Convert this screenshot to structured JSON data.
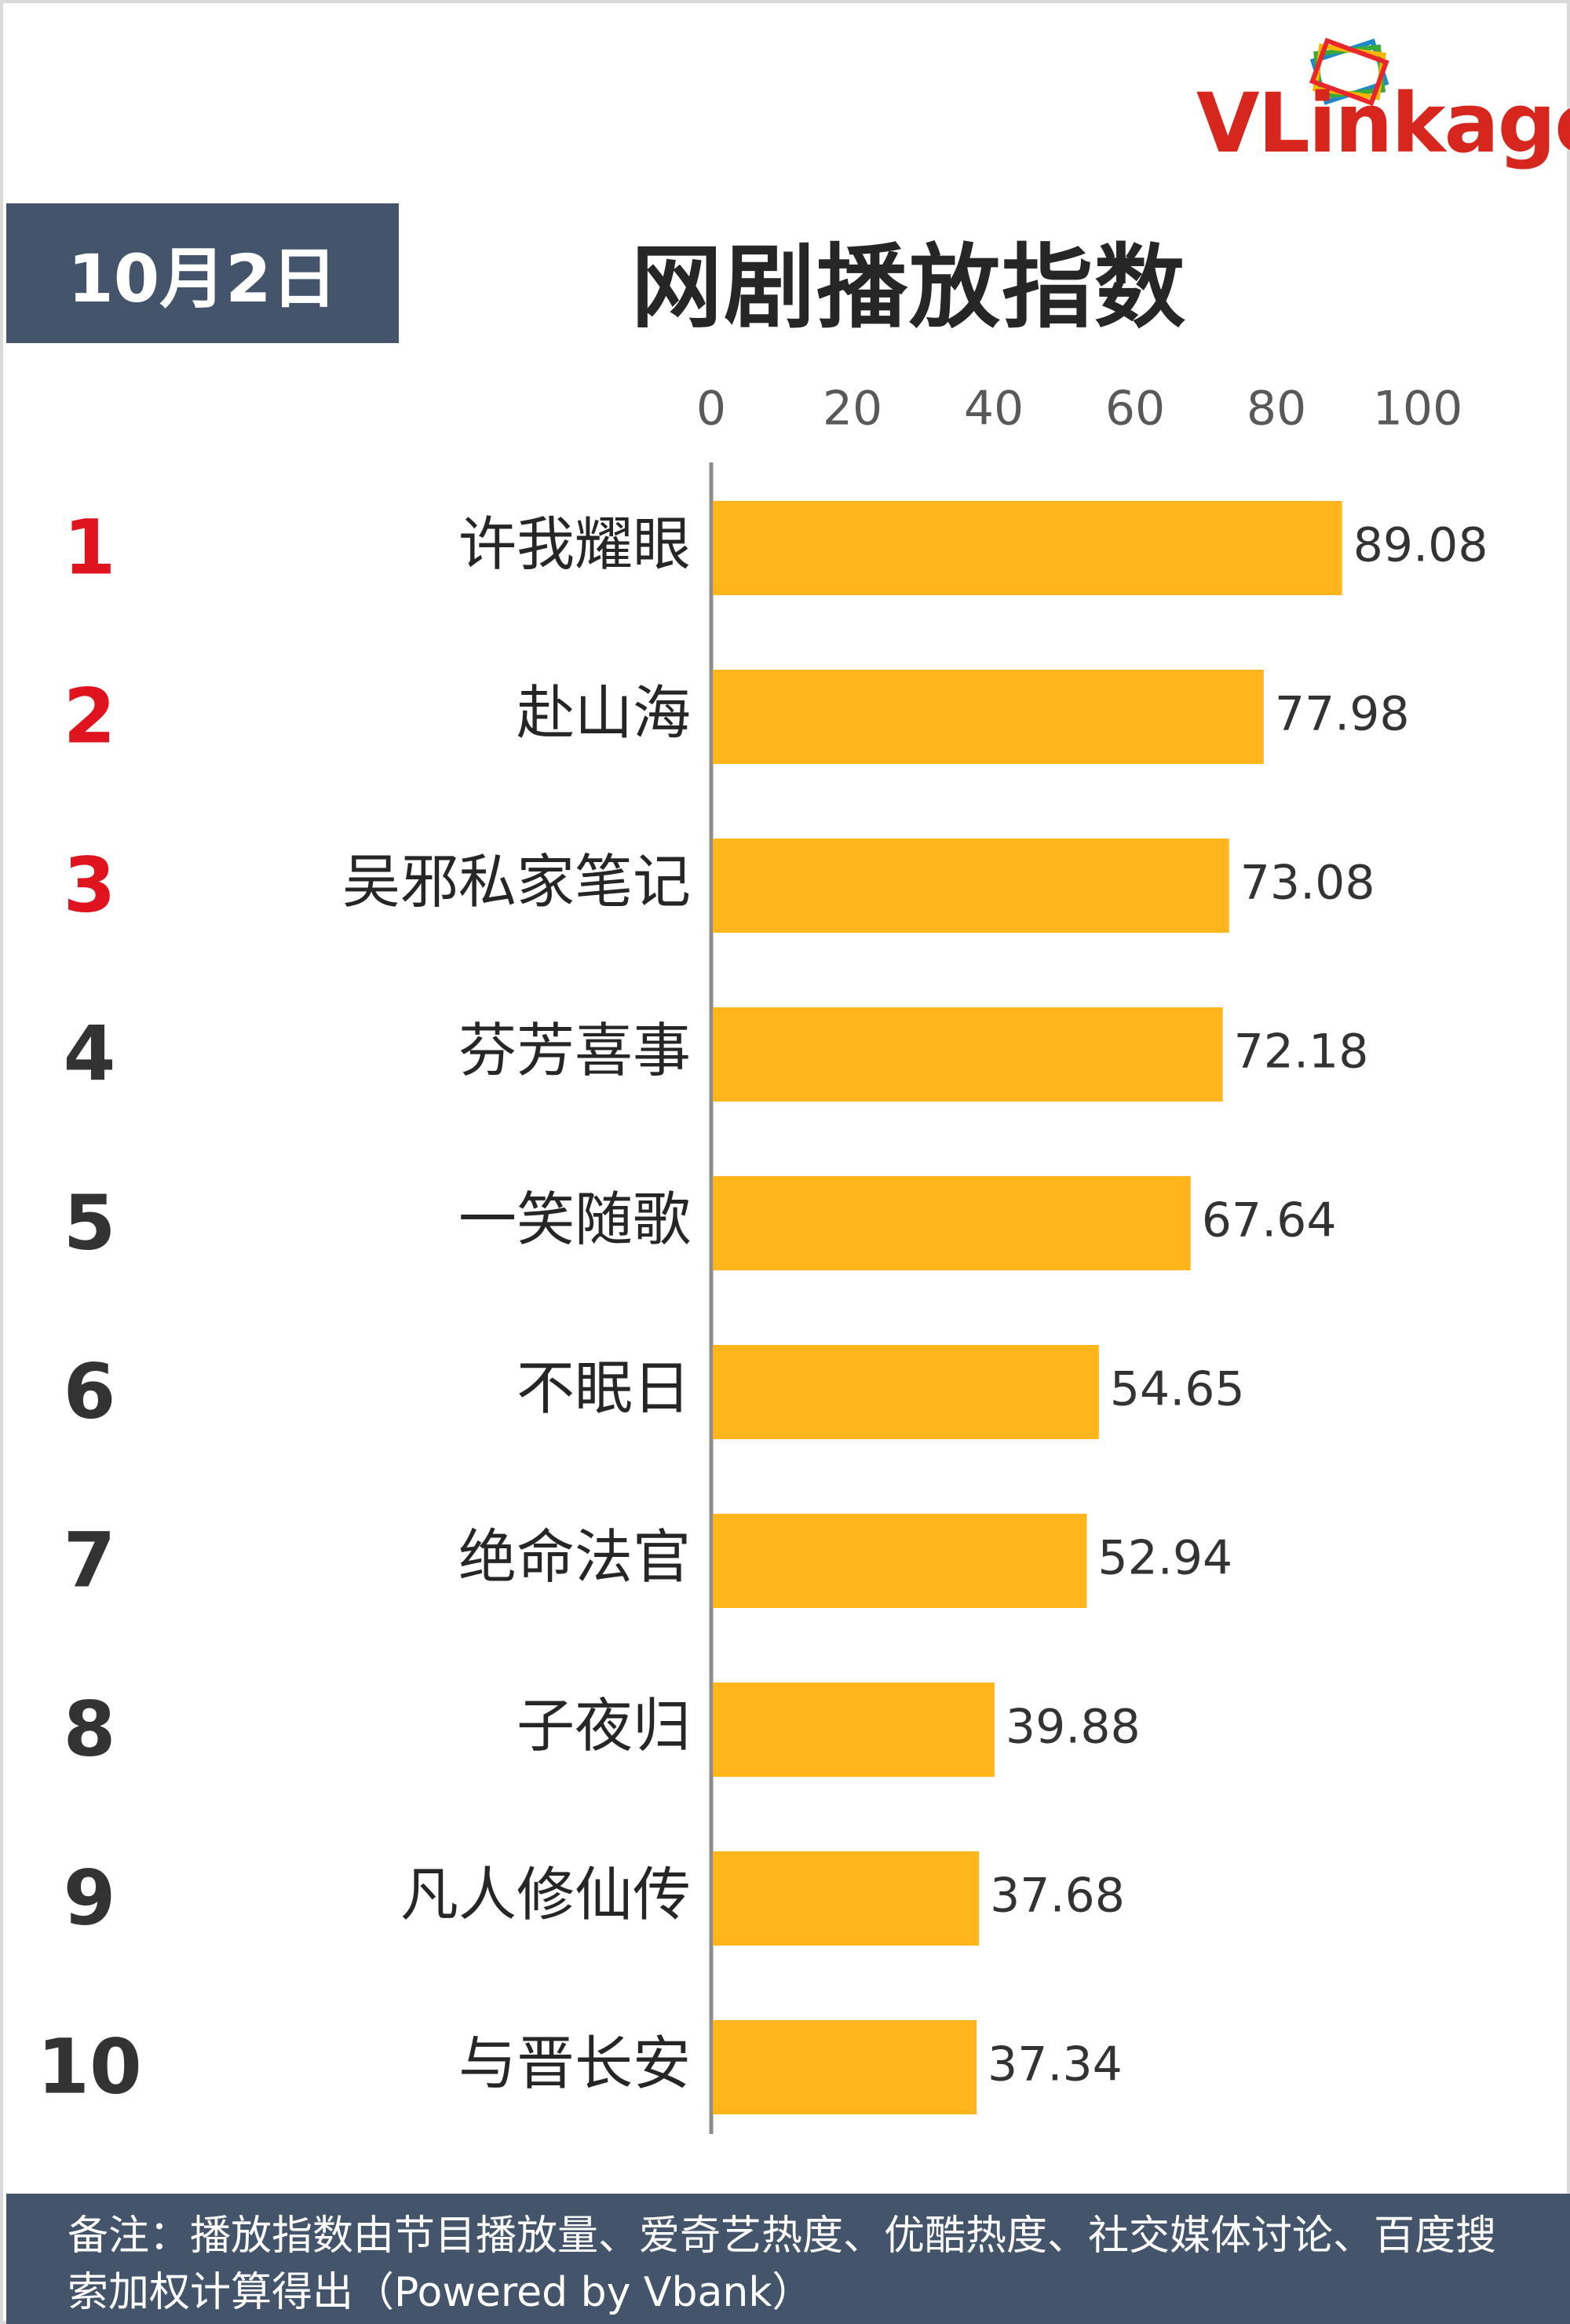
{
  "logo": {
    "text_vl": "VLink",
    "text_age": "age",
    "colors": [
      "#e8262b",
      "#f7b500",
      "#3aa935",
      "#1e88c8"
    ]
  },
  "date_label": "10月2日",
  "chart_title": "网剧播放指数",
  "chart_data": {
    "type": "bar",
    "orientation": "horizontal",
    "title": "网剧播放指数",
    "xlim": [
      0,
      100
    ],
    "xticks": [
      "0",
      "20",
      "40",
      "60",
      "80",
      "100"
    ],
    "categories": [
      "许我耀眼",
      "赴山海",
      "吴邪私家笔记",
      "芬芳喜事",
      "一笑随歌",
      "不眠日",
      "绝命法官",
      "子夜归",
      "凡人修仙传",
      "与晋长安"
    ],
    "ranks": [
      "1",
      "2",
      "3",
      "4",
      "5",
      "6",
      "7",
      "8",
      "9",
      "10"
    ],
    "values": [
      89.08,
      77.98,
      73.08,
      72.18,
      67.64,
      54.65,
      52.94,
      39.88,
      37.68,
      37.34
    ],
    "value_labels": [
      "89.08",
      "77.98",
      "73.08",
      "72.18",
      "67.64",
      "54.65",
      "52.94",
      "39.88",
      "37.68",
      "37.34"
    ],
    "bar_color": "#ffb51b",
    "top_rank_color": "#e0141e",
    "rank_color": "#333333",
    "grid": false
  },
  "footer_note": "备注：播放指数由节目播放量、爱奇艺热度、优酷热度、社交媒体讨论、百度搜索加权计算得出（Powered by Vbank）"
}
